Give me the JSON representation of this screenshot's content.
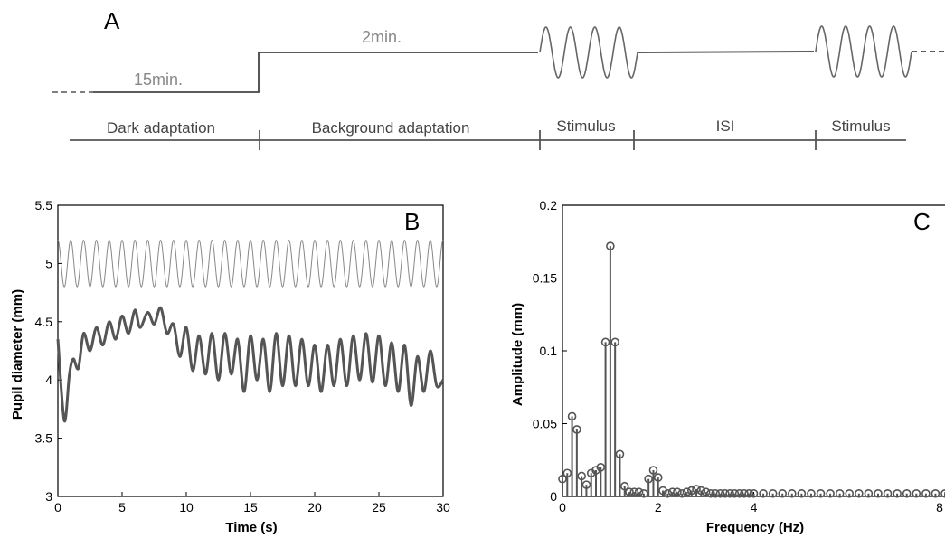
{
  "panel_a": {
    "letter": "A",
    "dark_duration": "15min.",
    "bg_duration": "2min.",
    "segments": [
      "Dark adaptation",
      "Background adaptation",
      "Stimulus",
      "ISI",
      "Stimulus"
    ]
  },
  "chart_data": [
    {
      "type": "line",
      "panel": "B",
      "xlabel": "Time (s)",
      "ylabel": "Pupil diameter (mm)",
      "xlim": [
        0,
        30
      ],
      "ylim": [
        3,
        5.5
      ],
      "xticks": [
        "0",
        "5",
        "10",
        "15",
        "20",
        "25",
        "30"
      ],
      "yticks": [
        "3",
        "3.5",
        "4",
        "4.5",
        "5",
        "5.5"
      ],
      "series": [
        {
          "role": "stimulus",
          "color": "#888888",
          "x": [
            0,
            30
          ],
          "y": [
            4.8,
            5.2
          ]
        },
        {
          "role": "pupil",
          "color": "#555555",
          "x": [
            0,
            0.5,
            0.9,
            1.2,
            1.6,
            2.0,
            2.5,
            3.0,
            3.5,
            4.0,
            4.5,
            5.0,
            5.5,
            6.0,
            6.4,
            7.0,
            7.5,
            8.0,
            8.5,
            9.0,
            9.5,
            10.0,
            10.5,
            11.0,
            11.5,
            12.0,
            12.5,
            13.0,
            13.5,
            14.0,
            14.5,
            15.0,
            15.5,
            16.0,
            16.5,
            17.0,
            17.5,
            18.0,
            18.5,
            19.0,
            19.5,
            20.0,
            20.5,
            21.0,
            21.5,
            22.0,
            22.5,
            23.0,
            23.5,
            24.0,
            24.5,
            25.0,
            25.5,
            26.0,
            26.5,
            27.0,
            27.5,
            28.0,
            28.5,
            29.0,
            29.5,
            30.0
          ],
          "y": [
            4.35,
            3.65,
            4.05,
            4.18,
            4.1,
            4.4,
            4.25,
            4.45,
            4.3,
            4.5,
            4.35,
            4.55,
            4.4,
            4.6,
            4.45,
            4.58,
            4.48,
            4.62,
            4.4,
            4.48,
            4.2,
            4.45,
            4.08,
            4.38,
            4.05,
            4.4,
            4.0,
            4.4,
            4.05,
            4.35,
            3.9,
            4.38,
            4.0,
            4.35,
            3.9,
            4.4,
            3.95,
            4.38,
            3.95,
            4.35,
            3.95,
            4.3,
            3.9,
            4.3,
            3.95,
            4.35,
            3.95,
            4.38,
            4.0,
            4.4,
            3.98,
            4.38,
            3.95,
            4.32,
            3.9,
            4.3,
            3.78,
            4.2,
            3.9,
            4.25,
            3.95,
            4.0
          ]
        }
      ]
    },
    {
      "type": "bar",
      "panel": "C",
      "xlabel": "Frequency (Hz)",
      "ylabel": "Amplitude (mm)",
      "xlim": [
        0,
        8
      ],
      "ylim": [
        0,
        0.2
      ],
      "xticks": [
        "0",
        "2",
        "4",
        "8"
      ],
      "yticks": [
        "0",
        "0.05",
        "0.1",
        "0.15",
        "0.2"
      ],
      "color": "#555555",
      "x": [
        0.0,
        0.1,
        0.2,
        0.3,
        0.4,
        0.5,
        0.6,
        0.7,
        0.8,
        0.9,
        1.0,
        1.1,
        1.2,
        1.3,
        1.4,
        1.5,
        1.6,
        1.7,
        1.8,
        1.9,
        2.0,
        2.1,
        2.2,
        2.3,
        2.4,
        2.5,
        2.6,
        2.7,
        2.8,
        2.9,
        3.0,
        3.1,
        3.2,
        3.3,
        3.4,
        3.5,
        3.6,
        3.7,
        3.8,
        3.9,
        4.0,
        4.2,
        4.4,
        4.6,
        4.8,
        5.0,
        5.2,
        5.4,
        5.6,
        5.8,
        6.0,
        6.2,
        6.4,
        6.6,
        6.8,
        7.0,
        7.2,
        7.4,
        7.6,
        7.8,
        8.0
      ],
      "y": [
        0.012,
        0.016,
        0.055,
        0.046,
        0.014,
        0.008,
        0.016,
        0.018,
        0.02,
        0.106,
        0.172,
        0.106,
        0.029,
        0.007,
        0.003,
        0.003,
        0.003,
        0.002,
        0.012,
        0.018,
        0.013,
        0.004,
        0.002,
        0.003,
        0.003,
        0.002,
        0.003,
        0.004,
        0.005,
        0.004,
        0.003,
        0.002,
        0.002,
        0.002,
        0.002,
        0.002,
        0.002,
        0.002,
        0.002,
        0.002,
        0.002,
        0.002,
        0.002,
        0.002,
        0.002,
        0.002,
        0.002,
        0.002,
        0.002,
        0.002,
        0.002,
        0.002,
        0.002,
        0.002,
        0.002,
        0.002,
        0.002,
        0.002,
        0.002,
        0.002,
        0.002
      ]
    }
  ]
}
